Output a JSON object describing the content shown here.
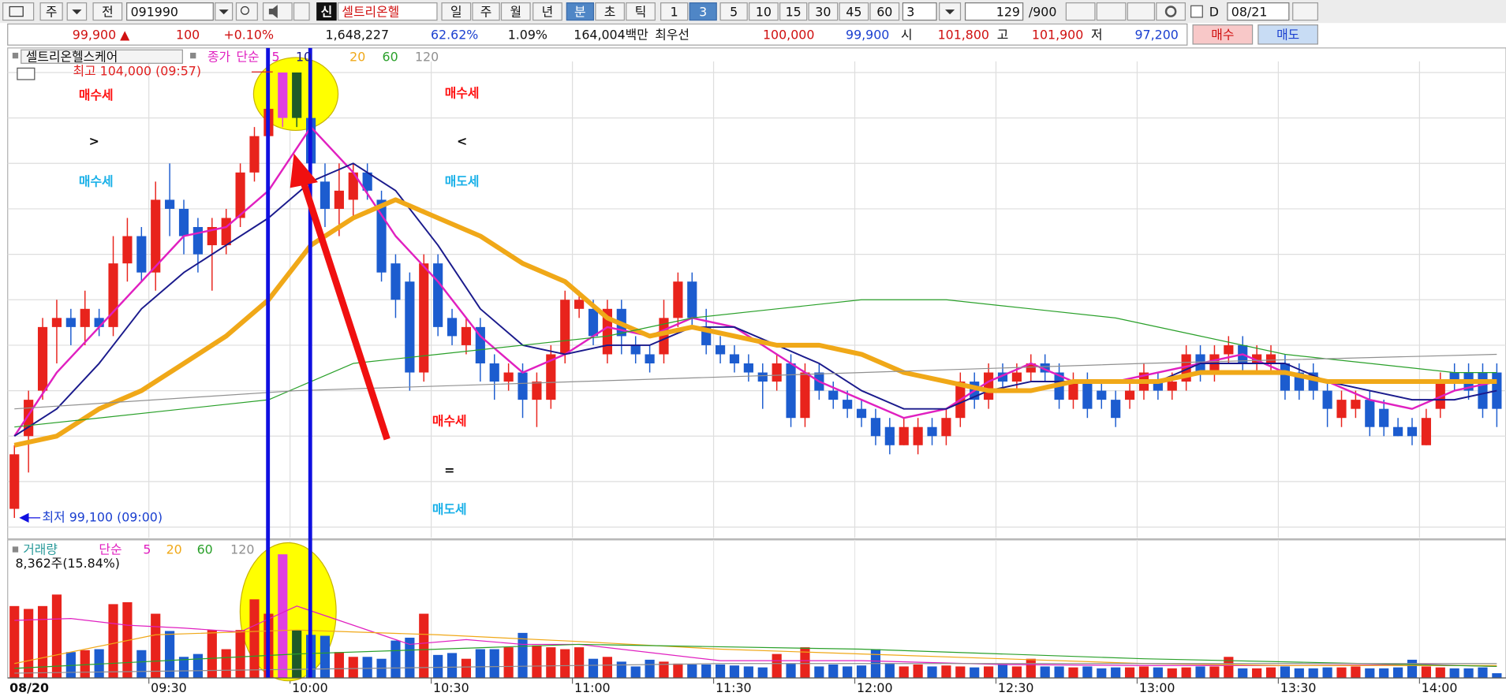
{
  "toolbar": {
    "row1": [
      "주",
      "전",
      "091990",
      "신",
      "셀트리온헬",
      "일",
      "주",
      "월",
      "년",
      "분",
      "초",
      "틱",
      "1",
      "3",
      "5",
      "10",
      "15",
      "30",
      "45",
      "60",
      "3",
      "129",
      "/900",
      "D",
      "08/21"
    ],
    "row2": [
      "99,900 ▲",
      "100",
      "+0.10%",
      "1,648,227",
      "62.62%",
      "1.09%",
      "164,004백만",
      "최우선",
      "100,000",
      "99,900",
      "시",
      "101,800",
      "고",
      "101,900",
      "저",
      "97,200",
      "매수",
      "매도"
    ]
  },
  "chart_data": {
    "type": "candlestick",
    "title": "셀트리온헬스케어",
    "price_label": "종가",
    "method": "단순",
    "up_color": "#e8231c",
    "down_color": "#1c5ccf",
    "highlight": {
      "indices": [
        19,
        20
      ],
      "up_color": "#e040e0",
      "down_color": "#1e5a28"
    },
    "xlim": [
      -0.476,
      105.65
    ],
    "xticks": [
      {
        "value": 0,
        "label": "08/20"
      },
      {
        "value": 10,
        "label": "09:30"
      },
      {
        "value": 20,
        "label": "10:00"
      },
      {
        "value": 30,
        "label": "10:30"
      },
      {
        "value": 40,
        "label": "11:00"
      },
      {
        "value": 50,
        "label": "11:30"
      },
      {
        "value": 60,
        "label": "12:00"
      },
      {
        "value": 70,
        "label": "12:30"
      },
      {
        "value": 80,
        "label": "13:00"
      },
      {
        "value": 90,
        "label": "13:30"
      },
      {
        "value": 100,
        "label": "14:00"
      }
    ],
    "ylim": [
      98880,
      104270
    ],
    "ygrid": [
      99000,
      99500,
      100000,
      100500,
      101000,
      101500,
      102000,
      102500,
      103000,
      103500,
      104000
    ],
    "ohlc": [
      [
        99200,
        99900,
        99100,
        99800
      ],
      [
        100000,
        100500,
        99600,
        100400
      ],
      [
        100500,
        101300,
        100400,
        101200
      ],
      [
        101200,
        101500,
        100800,
        101300
      ],
      [
        101300,
        101400,
        101000,
        101200
      ],
      [
        101200,
        101600,
        101000,
        101400
      ],
      [
        101300,
        101400,
        101100,
        101200
      ],
      [
        101200,
        102200,
        101100,
        101900
      ],
      [
        101900,
        102400,
        101700,
        102200
      ],
      [
        102200,
        102300,
        101700,
        101800
      ],
      [
        101800,
        102800,
        101600,
        102600
      ],
      [
        102600,
        103000,
        102200,
        102500
      ],
      [
        102500,
        102600,
        102000,
        102200
      ],
      [
        102300,
        102400,
        101800,
        102000
      ],
      [
        102100,
        102400,
        101600,
        102300
      ],
      [
        102100,
        102500,
        102000,
        102400
      ],
      [
        102400,
        103000,
        102300,
        102900
      ],
      [
        102900,
        103400,
        102800,
        103300
      ],
      [
        103300,
        103800,
        103200,
        103600
      ],
      [
        103500,
        104000,
        103400,
        104000
      ],
      [
        104000,
        104000,
        103400,
        103500
      ],
      [
        103500,
        103600,
        102900,
        103000
      ],
      [
        102800,
        103000,
        102300,
        102500
      ],
      [
        102500,
        103000,
        102200,
        102700
      ],
      [
        102600,
        103000,
        102400,
        102900
      ],
      [
        102900,
        103000,
        102600,
        102700
      ],
      [
        102600,
        102700,
        101700,
        101800
      ],
      [
        101900,
        102000,
        101300,
        101500
      ],
      [
        101700,
        101800,
        100500,
        100700
      ],
      [
        100700,
        102000,
        100600,
        101900
      ],
      [
        101900,
        102000,
        101100,
        101200
      ],
      [
        101300,
        101400,
        101000,
        101100
      ],
      [
        101000,
        101300,
        100900,
        101200
      ],
      [
        101200,
        101300,
        100600,
        100800
      ],
      [
        100800,
        100900,
        100400,
        100600
      ],
      [
        100600,
        100800,
        100500,
        100700
      ],
      [
        100700,
        100800,
        100200,
        100400
      ],
      [
        100400,
        100700,
        100100,
        100600
      ],
      [
        100400,
        101000,
        100300,
        100900
      ],
      [
        100900,
        101600,
        100800,
        101500
      ],
      [
        101400,
        101600,
        101300,
        101500
      ],
      [
        101400,
        101500,
        101000,
        101100
      ],
      [
        100900,
        101500,
        100800,
        101400
      ],
      [
        101400,
        101500,
        100900,
        101100
      ],
      [
        101000,
        101100,
        100800,
        100900
      ],
      [
        100900,
        101000,
        100700,
        100800
      ],
      [
        100900,
        101500,
        100800,
        101300
      ],
      [
        101300,
        101800,
        101200,
        101700
      ],
      [
        101700,
        101800,
        101200,
        101300
      ],
      [
        101200,
        101400,
        100900,
        101000
      ],
      [
        101000,
        101100,
        100800,
        100900
      ],
      [
        100900,
        101000,
        100700,
        100800
      ],
      [
        100800,
        100900,
        100600,
        100700
      ],
      [
        100700,
        100800,
        100300,
        100600
      ],
      [
        100600,
        100900,
        100500,
        100800
      ],
      [
        100800,
        100900,
        100100,
        100200
      ],
      [
        100200,
        100800,
        100100,
        100700
      ],
      [
        100700,
        100800,
        100400,
        100500
      ],
      [
        100500,
        100600,
        100300,
        100400
      ],
      [
        100400,
        100500,
        100200,
        100300
      ],
      [
        100300,
        100400,
        100100,
        100200
      ],
      [
        100200,
        100300,
        99900,
        100000
      ],
      [
        100100,
        100200,
        99800,
        99900
      ],
      [
        99900,
        100200,
        99900,
        100100
      ],
      [
        99900,
        100200,
        99800,
        100100
      ],
      [
        100100,
        100200,
        99900,
        100000
      ],
      [
        100000,
        100300,
        99900,
        100200
      ],
      [
        100200,
        100700,
        100100,
        100600
      ],
      [
        100600,
        100700,
        100300,
        100400
      ],
      [
        100400,
        100800,
        100300,
        100700
      ],
      [
        100700,
        100800,
        100500,
        100600
      ],
      [
        100600,
        100800,
        100500,
        100700
      ],
      [
        100700,
        100900,
        100600,
        100800
      ],
      [
        100800,
        100900,
        100600,
        100700
      ],
      [
        100700,
        100800,
        100300,
        100400
      ],
      [
        100400,
        100700,
        100300,
        100600
      ],
      [
        100600,
        100700,
        100200,
        100300
      ],
      [
        100500,
        100600,
        100300,
        100400
      ],
      [
        100400,
        100500,
        100100,
        100200
      ],
      [
        100400,
        100600,
        100300,
        100500
      ],
      [
        100500,
        100800,
        100400,
        100700
      ],
      [
        100600,
        100700,
        100400,
        100500
      ],
      [
        100500,
        100700,
        100400,
        100600
      ],
      [
        100600,
        101000,
        100500,
        100900
      ],
      [
        100900,
        101000,
        100600,
        100700
      ],
      [
        100700,
        101000,
        100600,
        100900
      ],
      [
        100900,
        101100,
        100800,
        101000
      ],
      [
        101000,
        101100,
        100700,
        100800
      ],
      [
        100800,
        101000,
        100700,
        100900
      ],
      [
        100800,
        101000,
        100700,
        100900
      ],
      [
        100800,
        100900,
        100400,
        100500
      ],
      [
        100700,
        100800,
        100400,
        100500
      ],
      [
        100700,
        100800,
        100400,
        100500
      ],
      [
        100500,
        100600,
        100100,
        100300
      ],
      [
        100200,
        100500,
        100100,
        100400
      ],
      [
        100300,
        100500,
        100200,
        100400
      ],
      [
        100400,
        100500,
        100000,
        100100
      ],
      [
        100300,
        100400,
        100000,
        100100
      ],
      [
        100100,
        100200,
        100000,
        100000
      ],
      [
        100100,
        100200,
        99900,
        100000
      ],
      [
        99900,
        100300,
        99900,
        100200
      ],
      [
        100300,
        100700,
        100200,
        100600
      ],
      [
        100700,
        100800,
        100500,
        100600
      ],
      [
        100700,
        100800,
        100400,
        100500
      ],
      [
        100700,
        100800,
        100200,
        100300
      ],
      [
        100700,
        100800,
        100100,
        100300
      ]
    ],
    "series": [
      {
        "name": "5",
        "color": "#e020c0",
        "x": [
          0,
          3,
          6,
          9,
          12,
          15,
          18,
          21,
          24,
          27,
          30,
          33,
          36,
          39,
          42,
          45,
          48,
          51,
          54,
          57,
          60,
          63,
          66,
          69,
          72,
          75,
          78,
          81,
          84,
          87,
          90,
          93,
          96,
          99,
          102,
          105
        ],
        "values": [
          100000,
          100700,
          101200,
          101700,
          102200,
          102300,
          102700,
          103400,
          102900,
          102200,
          101700,
          101100,
          100700,
          100900,
          101200,
          101100,
          101300,
          101200,
          100900,
          100600,
          100400,
          100200,
          100300,
          100600,
          100800,
          100600,
          100600,
          100700,
          100800,
          100900,
          100700,
          100600,
          100400,
          100300,
          100500,
          100600
        ]
      },
      {
        "name": "10",
        "color": "#1a1a8c",
        "x": [
          0,
          3,
          6,
          9,
          12,
          15,
          18,
          21,
          24,
          27,
          30,
          33,
          36,
          39,
          42,
          45,
          48,
          51,
          54,
          57,
          60,
          63,
          66,
          69,
          72,
          75,
          78,
          81,
          84,
          87,
          90,
          93,
          96,
          99,
          102,
          105
        ],
        "values": [
          100000,
          100300,
          100800,
          101400,
          101800,
          102100,
          102400,
          102800,
          103000,
          102700,
          102100,
          101400,
          101000,
          100900,
          101000,
          101000,
          101200,
          101200,
          101000,
          100800,
          100500,
          100300,
          100300,
          100500,
          100600,
          100600,
          100600,
          100600,
          100800,
          100800,
          100800,
          100600,
          100500,
          100400,
          100400,
          100500
        ]
      },
      {
        "name": "20",
        "color": "#f0a818",
        "x": [
          0,
          3,
          6,
          9,
          12,
          15,
          18,
          21,
          24,
          27,
          30,
          33,
          36,
          39,
          42,
          45,
          48,
          51,
          54,
          57,
          60,
          63,
          66,
          69,
          72,
          75,
          78,
          81,
          84,
          87,
          90,
          93,
          96,
          99,
          102,
          105
        ],
        "values": [
          99900,
          100000,
          100300,
          100500,
          100800,
          101100,
          101500,
          102100,
          102400,
          102600,
          102400,
          102200,
          101900,
          101700,
          101300,
          101100,
          101200,
          101100,
          101000,
          101000,
          100900,
          100700,
          100600,
          100500,
          100500,
          100600,
          100600,
          100600,
          100700,
          100700,
          100700,
          100600,
          100600,
          100600,
          100600,
          100600
        ]
      },
      {
        "name": "60",
        "color": "#2aa02a",
        "x": [
          0,
          6,
          12,
          18,
          21,
          24,
          30,
          36,
          42,
          48,
          54,
          60,
          66,
          72,
          78,
          84,
          90,
          96,
          102,
          105
        ],
        "values": [
          100100,
          100200,
          100300,
          100400,
          100600,
          100800,
          100900,
          101000,
          101100,
          101300,
          101400,
          101500,
          101500,
          101400,
          101300,
          101100,
          100900,
          100800,
          100700,
          100700
        ]
      },
      {
        "name": "120",
        "color": "#909090",
        "x": [
          0,
          20,
          40,
          60,
          80,
          105
        ],
        "values": [
          100300,
          100500,
          100600,
          100700,
          100800,
          100900
        ]
      }
    ],
    "high_label": "최고 104,000 (09:57)",
    "low_label": "최저 99,100 (09:00)",
    "annotations": [
      {
        "text": "매수세",
        "color": "#ff1010"
      },
      {
        "text": ">",
        "color": "#111111"
      },
      {
        "text": "매수세",
        "color": "#18b0e8"
      },
      {
        "text": "매수세",
        "color": "#ff1010"
      },
      {
        "text": "<",
        "color": "#111111"
      },
      {
        "text": "매도세",
        "color": "#18b0e8"
      },
      {
        "text": "매수세",
        "color": "#ff1010"
      },
      {
        "text": "=",
        "color": "#111111"
      },
      {
        "text": "매도세",
        "color": "#18b0e8"
      }
    ],
    "volume": {
      "label": "거래량",
      "method": "단순",
      "current": "8,362주(15.84%)",
      "vlim": [
        0,
        233000
      ],
      "values": [
        127500,
        122400,
        127500,
        147900,
        45900,
        49300,
        51000,
        130900,
        134300,
        49300,
        113900,
        83300,
        37400,
        42500,
        85000,
        51000,
        85000,
        139400,
        113900,
        219300,
        85000,
        76500,
        74800,
        45900,
        37400,
        37400,
        34000,
        66300,
        71400,
        113900,
        40800,
        44200,
        34000,
        51000,
        51000,
        54400,
        79900,
        57800,
        54400,
        51000,
        54400,
        34000,
        37400,
        28900,
        20400,
        32300,
        28900,
        25500,
        23800,
        23800,
        23800,
        22100,
        20400,
        18700,
        42500,
        25500,
        54400,
        20400,
        23800,
        20400,
        22100,
        51000,
        25500,
        20400,
        23800,
        20400,
        22100,
        20400,
        18700,
        20400,
        23800,
        20400,
        34000,
        20400,
        20400,
        18700,
        20400,
        17000,
        18700,
        18700,
        20400,
        18700,
        17000,
        18700,
        20400,
        20400,
        37400,
        17000,
        17000,
        18700,
        20400,
        17000,
        17000,
        18700,
        18700,
        20400,
        17000,
        17000,
        18700,
        32300,
        20400,
        18700,
        17000,
        17000,
        18700,
        8362
      ],
      "series": [
        {
          "name": "5",
          "color": "#e020c0",
          "x": [
            0,
            4,
            8,
            12,
            16,
            20,
            24,
            28,
            32,
            36,
            40,
            50,
            60,
            70,
            80,
            90,
            100,
            105
          ],
          "values": [
            102000,
            105400,
            93500,
            88400,
            81600,
            127500,
            93500,
            59500,
            68000,
            59500,
            59500,
            30600,
            30600,
            23800,
            22100,
            22100,
            23800,
            20400
          ]
        },
        {
          "name": "20",
          "color": "#f0a818",
          "x": [
            0,
            10,
            20,
            30,
            40,
            50,
            60,
            70,
            80,
            90,
            100,
            105
          ],
          "values": [
            25500,
            76500,
            85000,
            76500,
            64600,
            51000,
            42500,
            34000,
            25500,
            22100,
            22100,
            22100
          ]
        },
        {
          "name": "60",
          "color": "#2aa02a",
          "x": [
            0,
            20,
            40,
            60,
            80,
            105
          ],
          "values": [
            17000,
            42500,
            59500,
            51000,
            34000,
            20400
          ]
        },
        {
          "name": "120",
          "color": "#909090",
          "x": [
            0,
            50,
            105
          ],
          "values": [
            8500,
            25500,
            25500
          ]
        }
      ]
    }
  }
}
